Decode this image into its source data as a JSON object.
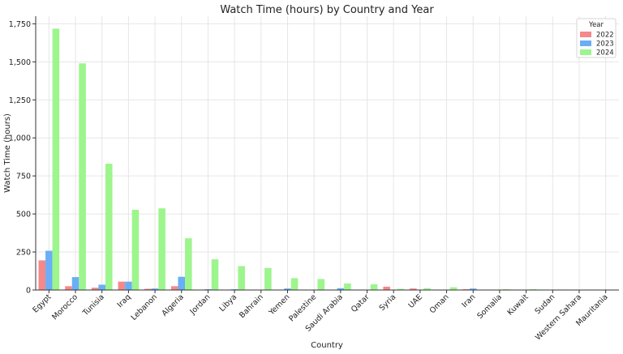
{
  "chart_data": {
    "type": "bar",
    "title": "Watch Time (hours) by Country and Year",
    "xlabel": "Country",
    "ylabel": "Watch Time (hours)",
    "ylim": [
      0,
      1800
    ],
    "yticks": [
      0,
      250,
      500,
      750,
      1000,
      1250,
      1500,
      1750
    ],
    "grid": true,
    "legend": {
      "title": "Year",
      "placement": "top-right"
    },
    "categories": [
      "Egypt",
      "Morocco",
      "Tunisia",
      "Iraq",
      "Lebanon",
      "Algeria",
      "Jordan",
      "Libya",
      "Bahrain",
      "Yemen",
      "Palestine",
      "Saudi Arabia",
      "Qatar",
      "Syria",
      "UAE",
      "Oman",
      "Iran",
      "Somalia",
      "Kuwait",
      "Sudan",
      "Western Sahara",
      "Mauritania"
    ],
    "series": [
      {
        "name": "2022",
        "color": "#f4898a",
        "values": [
          195,
          25,
          15,
          55,
          8,
          25,
          0,
          0,
          0,
          0,
          0,
          0,
          0,
          22,
          10,
          0,
          5,
          0,
          0,
          0,
          0,
          0
        ]
      },
      {
        "name": "2023",
        "color": "#6aaef5",
        "values": [
          258,
          85,
          35,
          55,
          10,
          87,
          5,
          5,
          0,
          10,
          0,
          12,
          0,
          0,
          0,
          0,
          10,
          0,
          0,
          0,
          0,
          0
        ]
      },
      {
        "name": "2024",
        "color": "#9df58d",
        "values": [
          1718,
          1490,
          830,
          527,
          537,
          340,
          202,
          157,
          145,
          78,
          72,
          43,
          38,
          8,
          12,
          18,
          0,
          5,
          5,
          3,
          1,
          1
        ]
      }
    ]
  }
}
